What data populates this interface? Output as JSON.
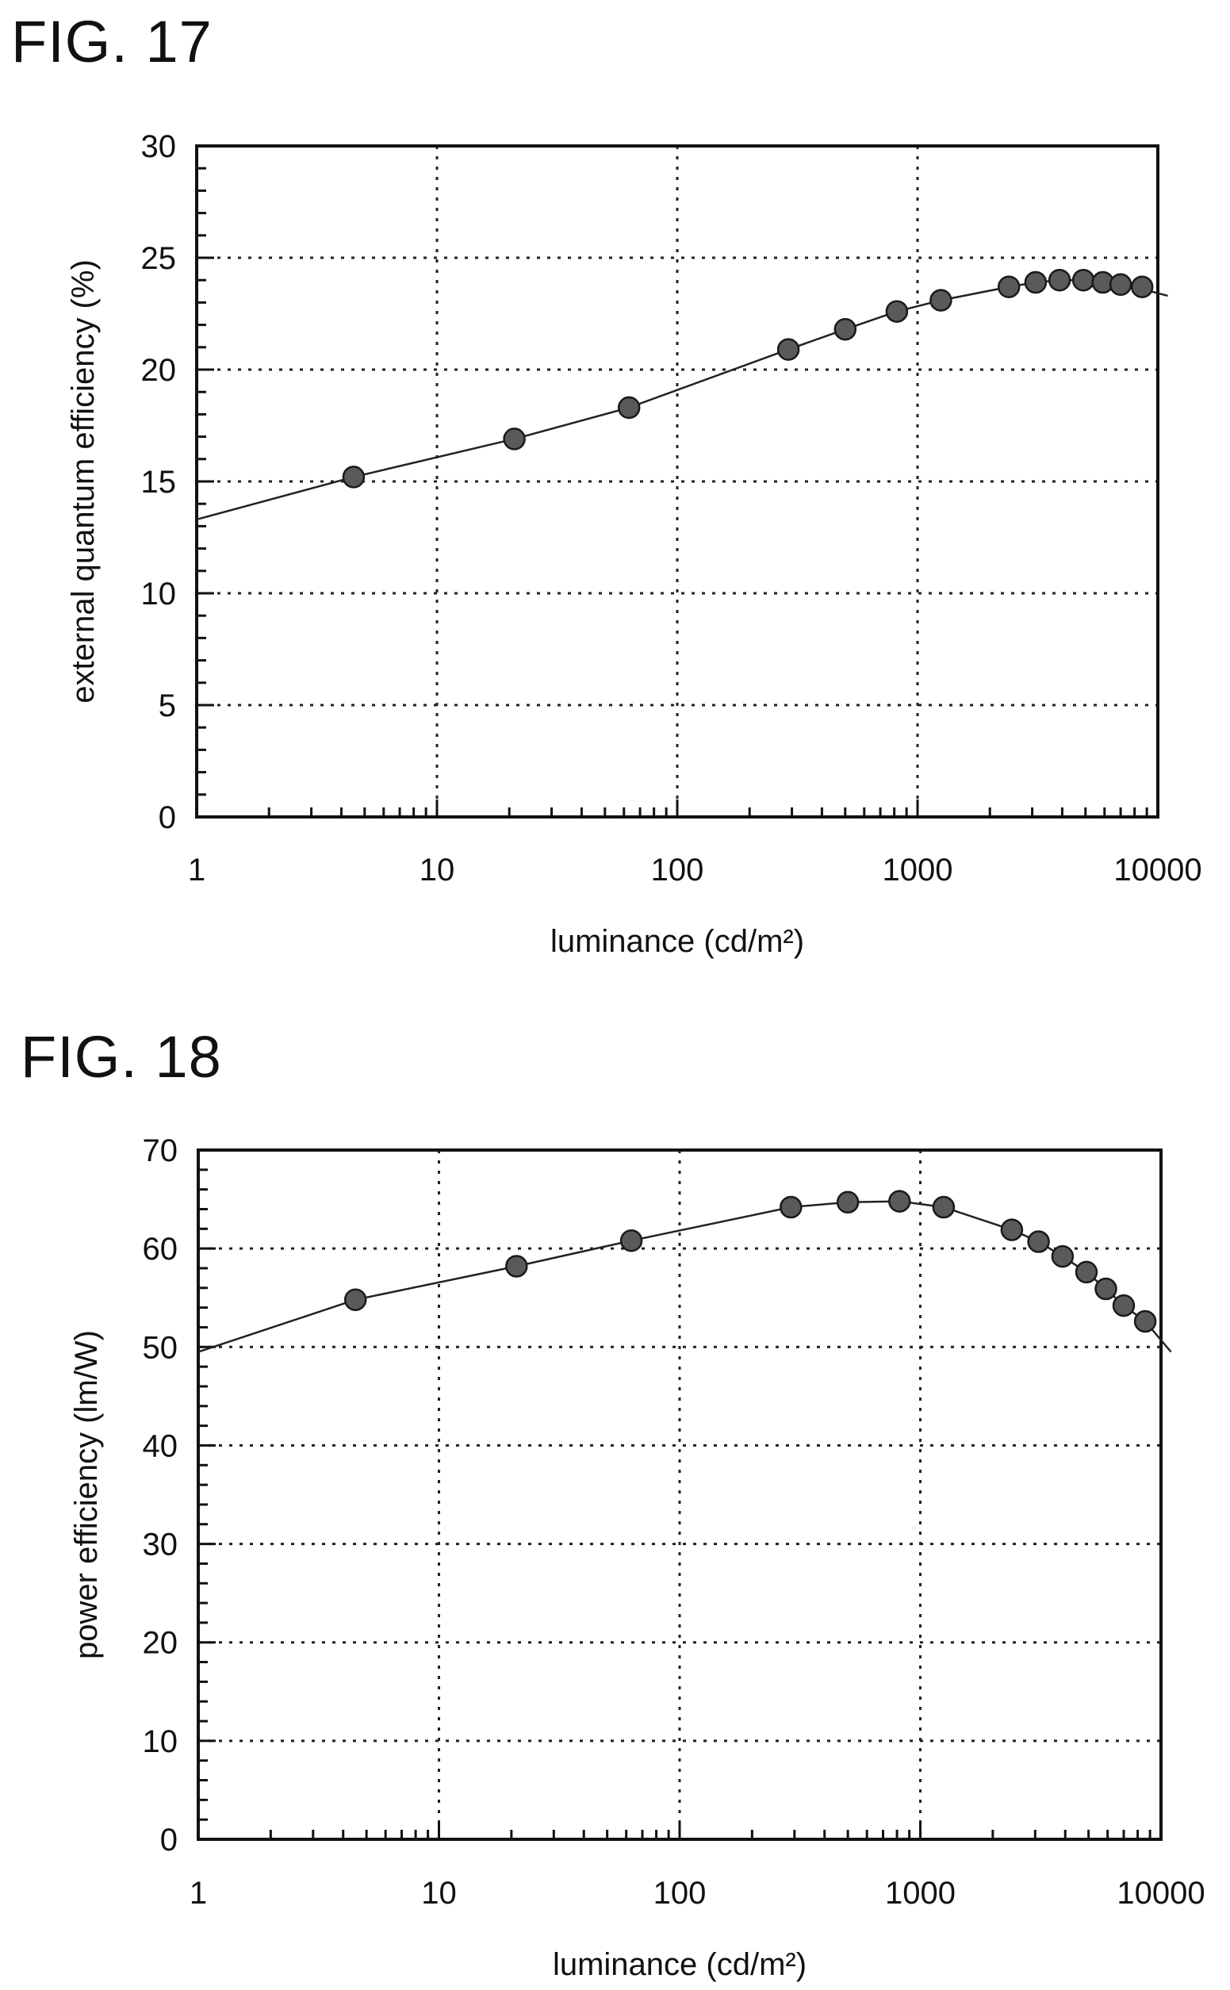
{
  "figures": [
    {
      "title": "FIG. 17",
      "chart_data": {
        "type": "scatter",
        "title": "",
        "xlabel": "luminance (cd/m²)",
        "ylabel": "external quantum efficiency (%)",
        "x_scale": "log",
        "xlim": [
          1,
          10000
        ],
        "ylim": [
          0,
          30
        ],
        "x_ticks": [
          1,
          10,
          100,
          1000,
          10000
        ],
        "x_tick_labels": [
          "1",
          "10",
          "100",
          "1000",
          "10000"
        ],
        "y_ticks": [
          0,
          5,
          10,
          15,
          20,
          25,
          30
        ],
        "y_tick_labels": [
          "0",
          "5",
          "10",
          "15",
          "20",
          "25",
          "30"
        ],
        "grid": true,
        "fit_line": {
          "x": [
            1,
            4.5,
            21,
            63,
            290,
            500,
            820,
            1250,
            2400,
            3100,
            3900,
            4900,
            5900,
            7000,
            8600,
            11000
          ],
          "y": [
            13.3,
            15.2,
            16.9,
            18.3,
            20.9,
            21.8,
            22.6,
            23.1,
            23.7,
            23.9,
            24.0,
            24.0,
            23.9,
            23.8,
            23.6,
            23.3
          ]
        },
        "series": [
          {
            "x": [
              4.5,
              21,
              63,
              290,
              500,
              820,
              1250,
              2400,
              3100,
              3900,
              4900,
              5900,
              7000,
              8600
            ],
            "y": [
              15.2,
              16.9,
              18.3,
              20.9,
              21.8,
              22.6,
              23.1,
              23.7,
              23.9,
              24.0,
              24.0,
              23.9,
              23.8,
              23.7
            ]
          }
        ],
        "marker_color": "#5a5a5a"
      }
    },
    {
      "title": "FIG. 18",
      "chart_data": {
        "type": "scatter",
        "title": "",
        "xlabel": "luminance (cd/m²)",
        "ylabel": "power efficiency (lm/W)",
        "x_scale": "log",
        "xlim": [
          1,
          10000
        ],
        "ylim": [
          0,
          70
        ],
        "x_ticks": [
          1,
          10,
          100,
          1000,
          10000
        ],
        "x_tick_labels": [
          "1",
          "10",
          "100",
          "1000",
          "10000"
        ],
        "y_ticks": [
          0,
          10,
          20,
          30,
          40,
          50,
          60,
          70
        ],
        "y_tick_labels": [
          "0",
          "10",
          "20",
          "30",
          "40",
          "50",
          "60",
          "70"
        ],
        "grid": true,
        "fit_line": {
          "x": [
            1,
            4.5,
            21,
            63,
            290,
            500,
            820,
            1250,
            2400,
            3100,
            3900,
            4900,
            5900,
            7000,
            8600,
            11000
          ],
          "y": [
            49.5,
            54.8,
            58.2,
            60.8,
            64.2,
            64.7,
            64.8,
            64.2,
            61.9,
            60.7,
            59.2,
            57.6,
            55.9,
            54.2,
            52.6,
            49.5
          ]
        },
        "series": [
          {
            "x": [
              4.5,
              21,
              63,
              290,
              500,
              820,
              1250,
              2400,
              3100,
              3900,
              4900,
              5900,
              7000,
              8600
            ],
            "y": [
              54.8,
              58.2,
              60.8,
              64.2,
              64.7,
              64.8,
              64.2,
              61.9,
              60.7,
              59.2,
              57.6,
              55.9,
              54.2,
              52.6
            ]
          }
        ],
        "marker_color": "#5a5a5a"
      }
    }
  ]
}
